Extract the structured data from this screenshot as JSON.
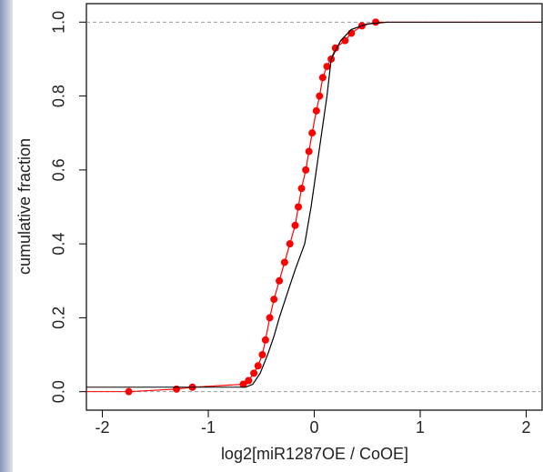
{
  "chart_data": {
    "type": "line",
    "xlabel": "log2[miR1287OE / CoOE]",
    "ylabel": "cumulative fraction",
    "xlim": [
      -2.15,
      2.15
    ],
    "ylim": [
      -0.05,
      1.05
    ],
    "xticks": [
      -2,
      -1,
      0,
      1,
      2
    ],
    "yticks": [
      {
        "value": 0,
        "label": "0.0"
      },
      0.2,
      0.4,
      0.6,
      0.8,
      {
        "value": 1,
        "label": "1.0"
      }
    ],
    "hlines": [
      0,
      1
    ],
    "series": [
      {
        "color": "#ff0000",
        "markers": true,
        "x": [
          -1.75,
          -1.3,
          -1.15,
          -0.67,
          -0.62,
          -0.57,
          -0.53,
          -0.49,
          -0.46,
          -0.42,
          -0.38,
          -0.33,
          -0.28,
          -0.23,
          -0.18,
          -0.15,
          -0.12,
          -0.08,
          -0.05,
          -0.02,
          0.02,
          0.05,
          0.08,
          0.12,
          0.16,
          0.2,
          0.29,
          0.35,
          0.45,
          0.58
        ],
        "values": [
          0.0,
          0.007,
          0.012,
          0.02,
          0.03,
          0.05,
          0.07,
          0.1,
          0.14,
          0.2,
          0.25,
          0.3,
          0.35,
          0.4,
          0.45,
          0.5,
          0.55,
          0.6,
          0.65,
          0.7,
          0.76,
          0.8,
          0.85,
          0.88,
          0.9,
          0.93,
          0.95,
          0.97,
          0.99,
          1.0
        ]
      },
      {
        "color": "#000000",
        "markers": false,
        "x": [
          -0.65,
          -0.58,
          -0.51,
          -0.44,
          -0.38,
          -0.33,
          -0.25,
          -0.18,
          -0.09,
          -0.03,
          0.02,
          0.07,
          0.12,
          0.16,
          0.25,
          0.35,
          0.5,
          0.7
        ],
        "values": [
          0.012,
          0.02,
          0.05,
          0.1,
          0.15,
          0.2,
          0.27,
          0.33,
          0.4,
          0.5,
          0.6,
          0.7,
          0.8,
          0.9,
          0.95,
          0.98,
          0.995,
          1.0
        ]
      }
    ]
  }
}
